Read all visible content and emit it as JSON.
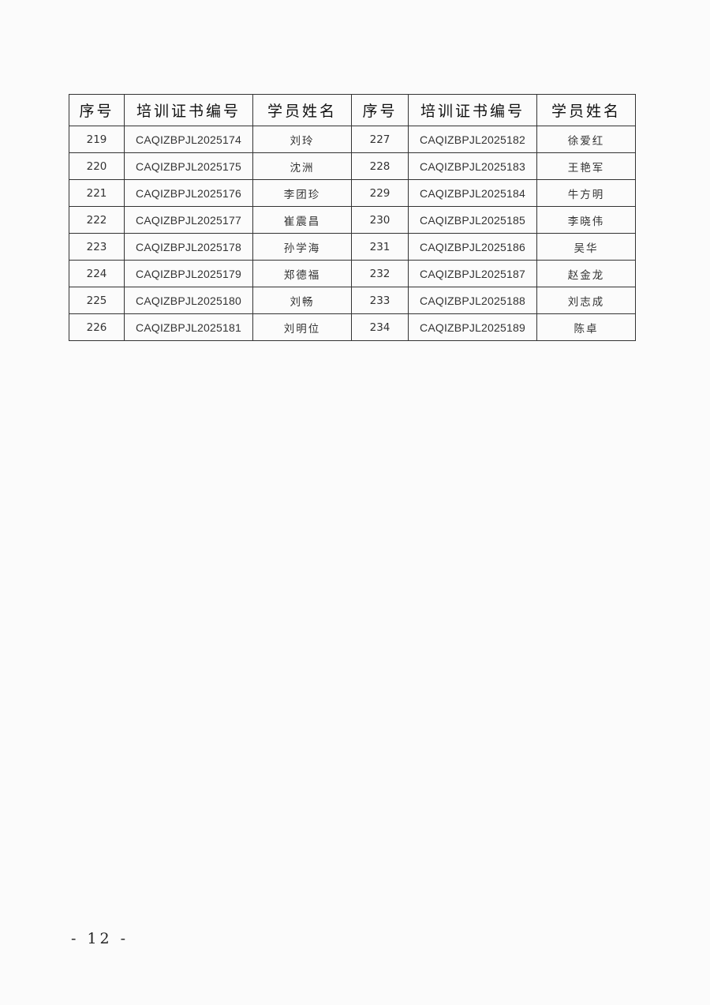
{
  "table": {
    "headers": [
      "序号",
      "培训证书编号",
      "学员姓名",
      "序号",
      "培训证书编号",
      "学员姓名"
    ],
    "rows": [
      [
        "219",
        "CAQIZBPJL2025174",
        "刘玲",
        "227",
        "CAQIZBPJL2025182",
        "徐爱红"
      ],
      [
        "220",
        "CAQIZBPJL2025175",
        "沈洲",
        "228",
        "CAQIZBPJL2025183",
        "王艳军"
      ],
      [
        "221",
        "CAQIZBPJL2025176",
        "李团珍",
        "229",
        "CAQIZBPJL2025184",
        "牛方明"
      ],
      [
        "222",
        "CAQIZBPJL2025177",
        "崔震昌",
        "230",
        "CAQIZBPJL2025185",
        "李晓伟"
      ],
      [
        "223",
        "CAQIZBPJL2025178",
        "孙学海",
        "231",
        "CAQIZBPJL2025186",
        "吴华"
      ],
      [
        "224",
        "CAQIZBPJL2025179",
        "郑德福",
        "232",
        "CAQIZBPJL2025187",
        "赵金龙"
      ],
      [
        "225",
        "CAQIZBPJL2025180",
        "刘畅",
        "233",
        "CAQIZBPJL2025188",
        "刘志成"
      ],
      [
        "226",
        "CAQIZBPJL2025181",
        "刘明位",
        "234",
        "CAQIZBPJL2025189",
        "陈卓"
      ]
    ]
  },
  "footer": {
    "page_number": "- 12 -"
  }
}
